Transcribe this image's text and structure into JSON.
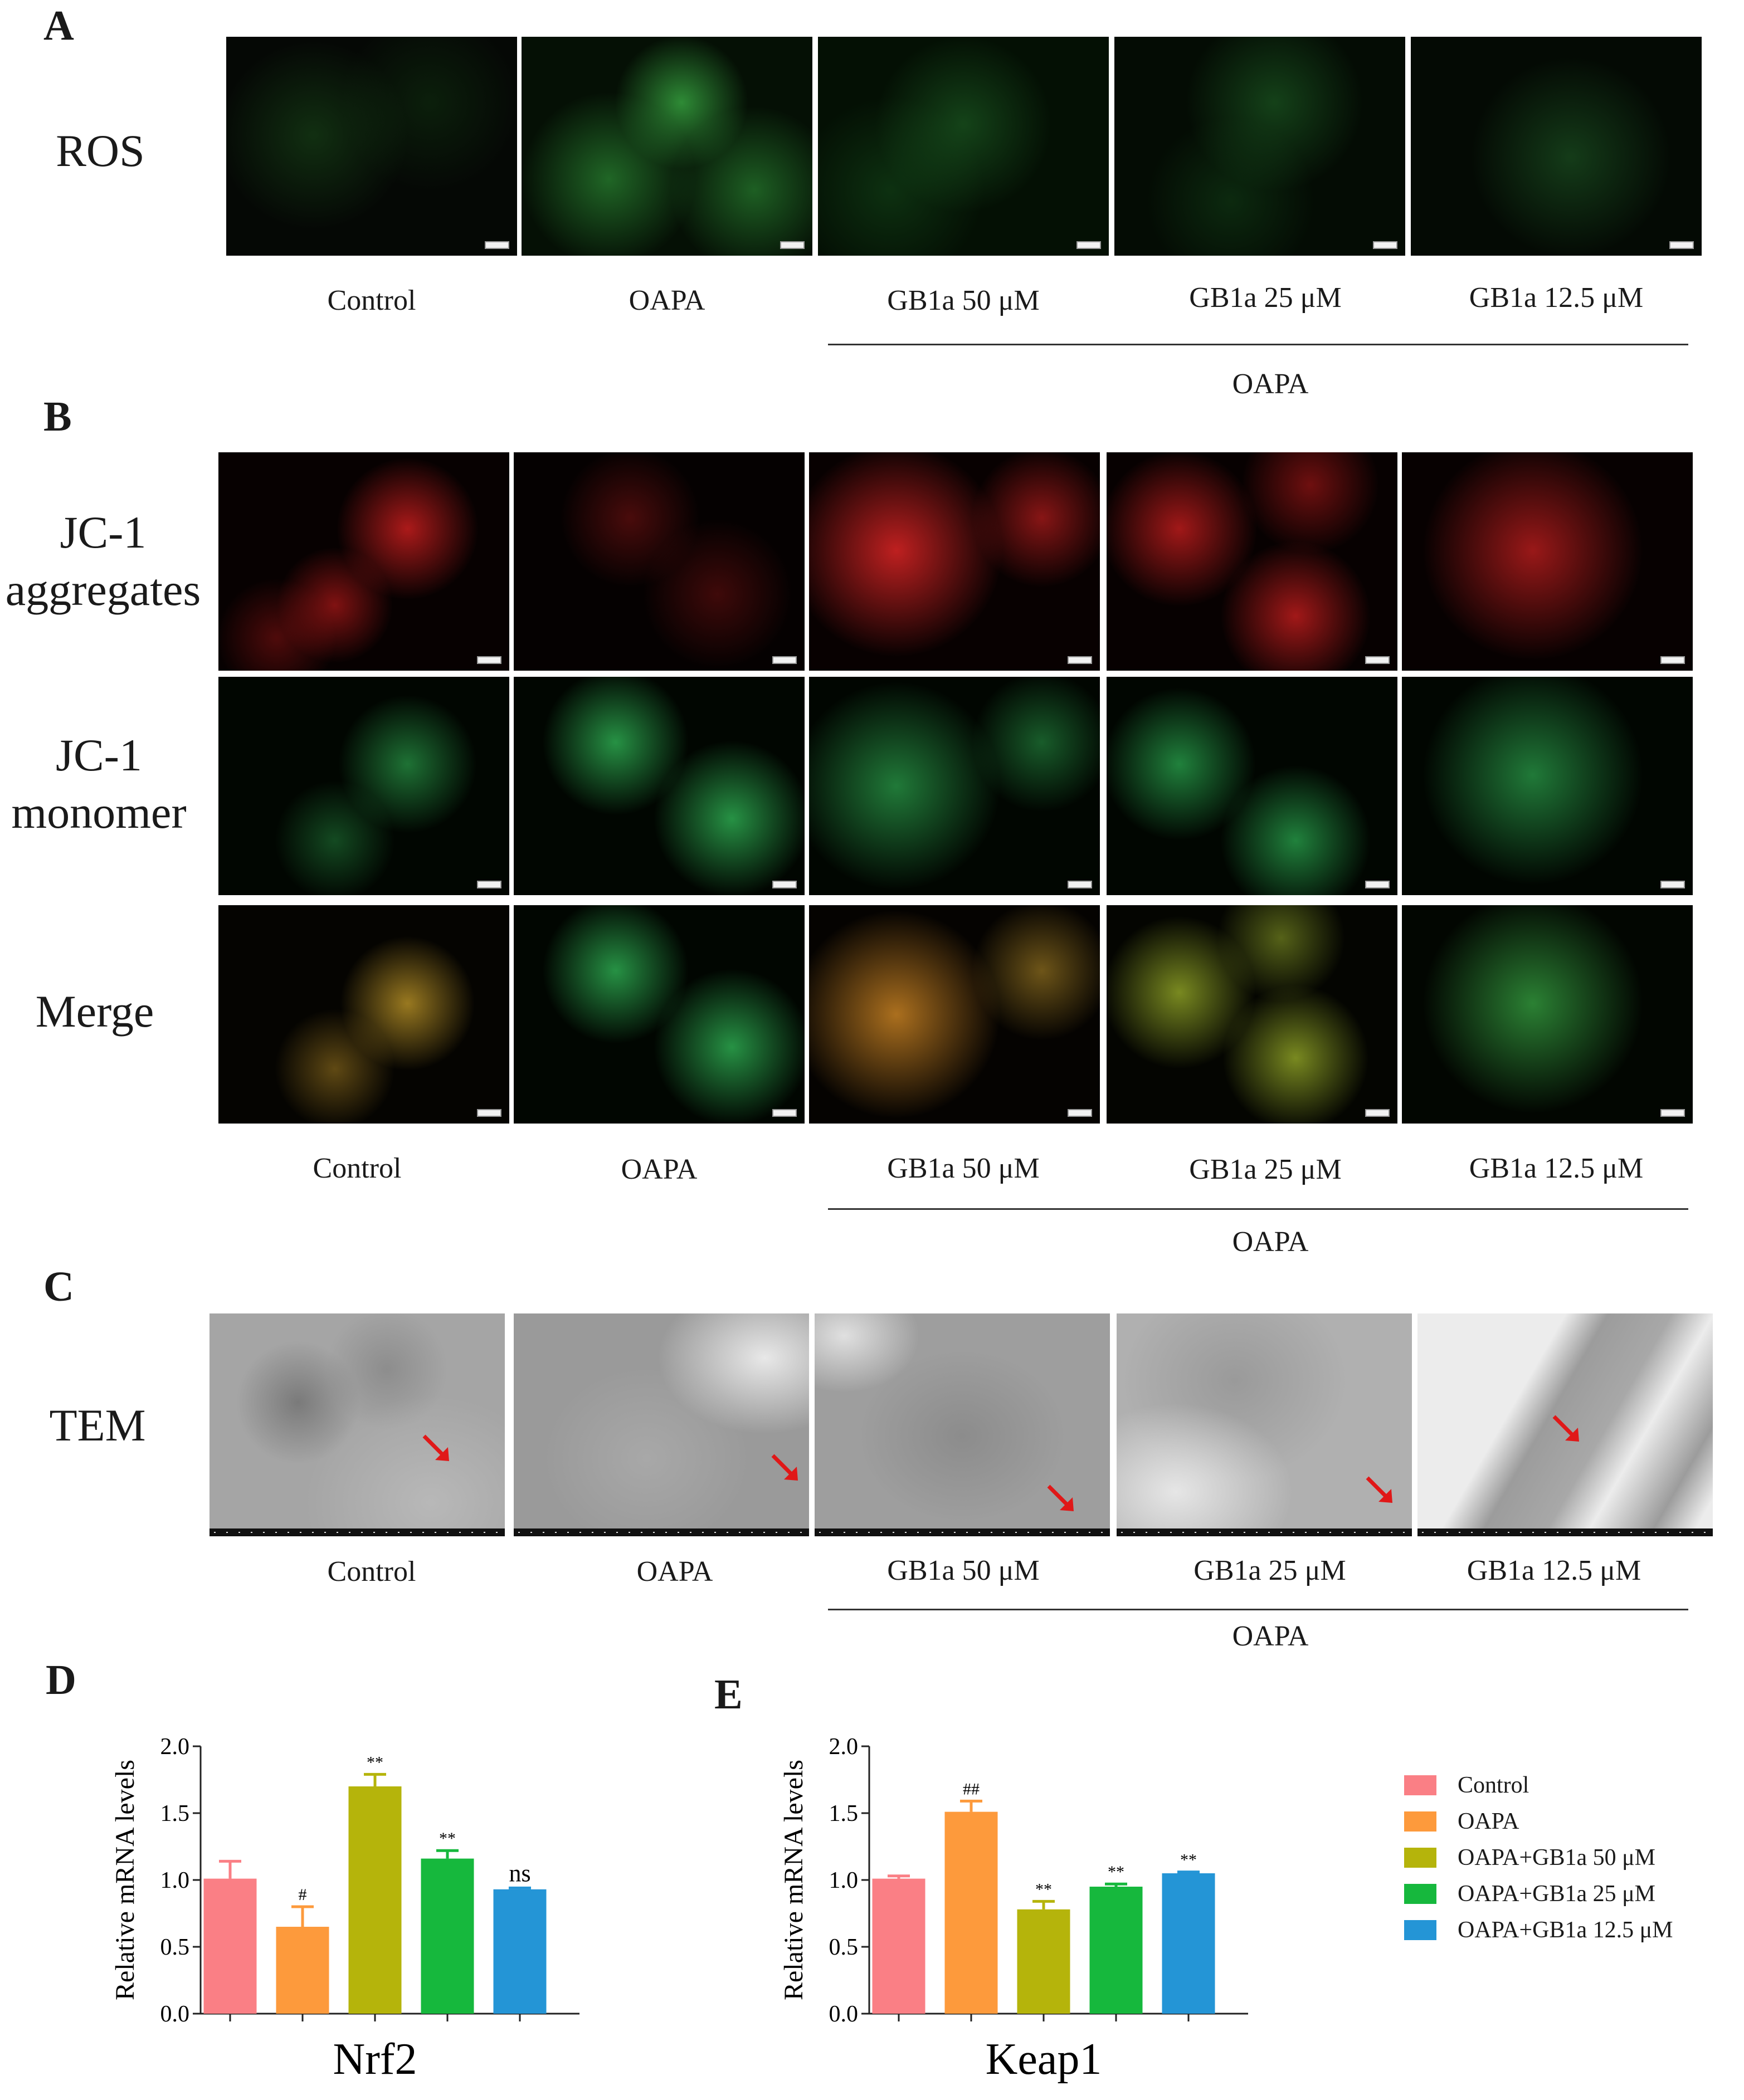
{
  "panels": {
    "a": {
      "letter": "A",
      "row_label": "ROS"
    },
    "b": {
      "letter": "B",
      "row_labels": [
        "JC-1\naggregates",
        "JC-1\nmonomer",
        "Merge"
      ]
    },
    "c": {
      "letter": "C",
      "row_label": "TEM"
    },
    "d": {
      "letter": "D"
    },
    "e": {
      "letter": "E"
    }
  },
  "column_labels": [
    "Control",
    "OAPA",
    "GB1a 50 μM",
    "GB1a 25 μM",
    "GB1a 12.5 μM"
  ],
  "group_label": "OAPA",
  "colors": {
    "control": "#fa7f85",
    "oapa": "#fd9a3c",
    "gb50": "#b5b40b",
    "gb25": "#16b83d",
    "gb125": "#2495d6"
  },
  "legend": [
    "Control",
    "OAPA",
    "OAPA+GB1a 50 μM",
    "OAPA+GB1a 25 μM",
    "OAPA+GB1a 12.5 μM"
  ],
  "chart_data": [
    {
      "type": "bar",
      "title": "",
      "xlabel": "Nrf2",
      "ylabel": "Relative mRNA levels",
      "ylim": [
        0,
        2.0
      ],
      "yticks": [
        "0.0",
        "0.5",
        "1.0",
        "1.5",
        "2.0"
      ],
      "categories": [
        "Control",
        "OAPA",
        "OAPA+GB1a 50 μM",
        "OAPA+GB1a 25 μM",
        "OAPA+GB1a 12.5 μM"
      ],
      "values": [
        1.01,
        0.65,
        1.7,
        1.16,
        0.93
      ],
      "errors": [
        0.13,
        0.15,
        0.09,
        0.06,
        0.01
      ],
      "annotations": [
        "",
        "#",
        "**",
        "**",
        "ns"
      ]
    },
    {
      "type": "bar",
      "title": "",
      "xlabel": "Keap1",
      "ylabel": "Relative mRNA levels",
      "ylim": [
        0,
        2.0
      ],
      "yticks": [
        "0.0",
        "0.5",
        "1.0",
        "1.5",
        "2.0"
      ],
      "categories": [
        "Control",
        "OAPA",
        "OAPA+GB1a 50 μM",
        "OAPA+GB1a 25 μM",
        "OAPA+GB1a 12.5 μM"
      ],
      "values": [
        1.01,
        1.51,
        0.78,
        0.95,
        1.05
      ],
      "errors": [
        0.02,
        0.08,
        0.06,
        0.02,
        0.01
      ],
      "annotations": [
        "",
        "##",
        "**",
        "**",
        "**"
      ]
    }
  ]
}
